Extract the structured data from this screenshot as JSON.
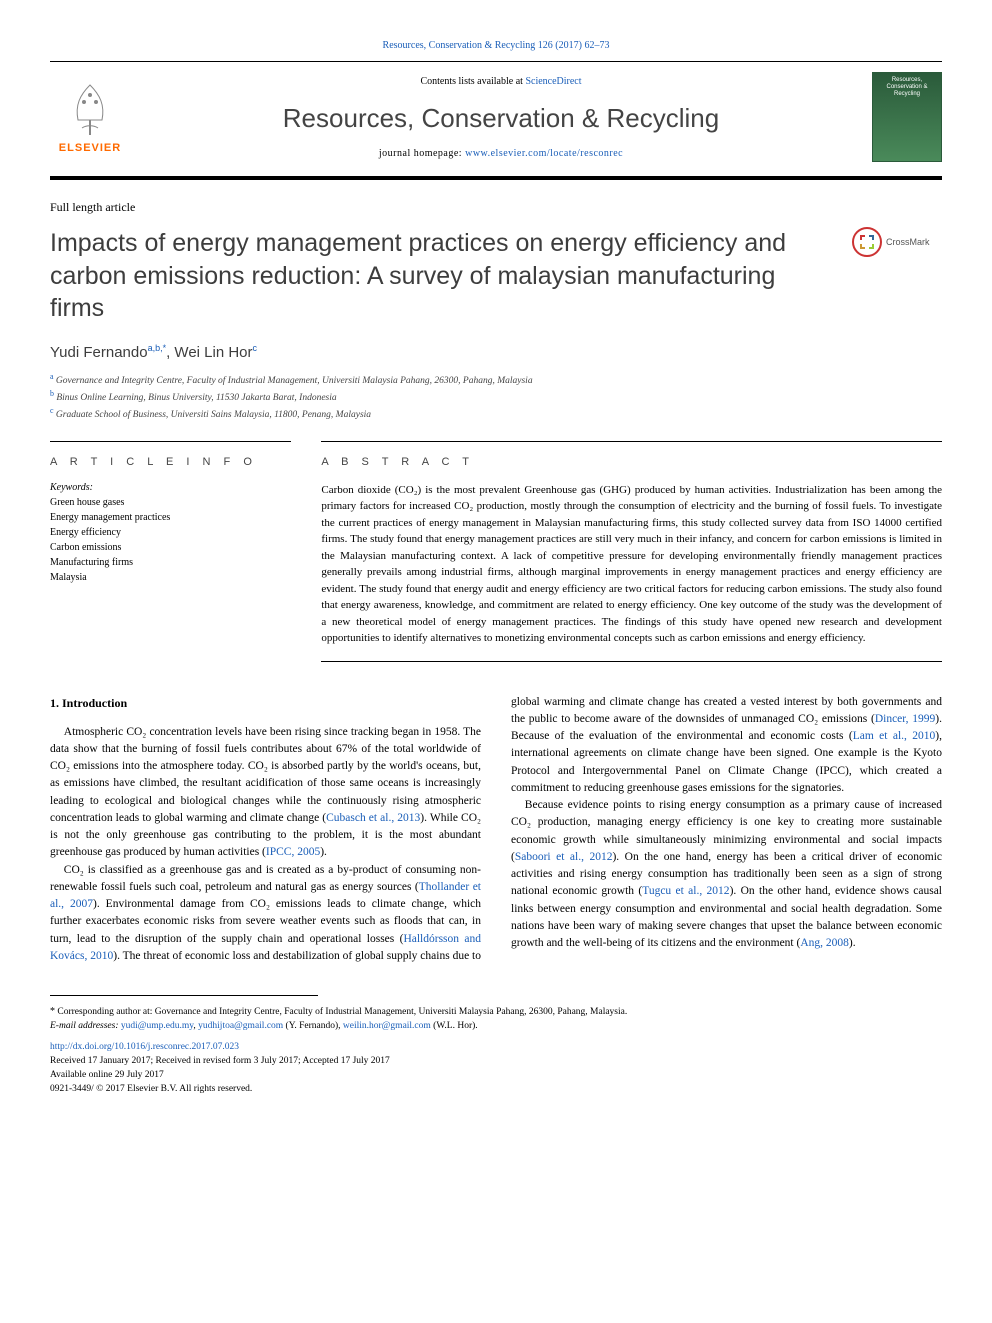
{
  "header": {
    "top_link_text": "Resources, Conservation & Recycling 126 (2017) 62–73",
    "contents_prefix": "Contents lists available at ",
    "contents_link": "ScienceDirect",
    "journal_name": "Resources, Conservation & Recycling",
    "homepage_prefix": "journal homepage: ",
    "homepage_link": "www.elsevier.com/locate/resconrec",
    "publisher": "ELSEVIER",
    "cover_text": "Resources, Conservation & Recycling"
  },
  "article": {
    "type": "Full length article",
    "title": "Impacts of energy management practices on energy efficiency and carbon emissions reduction: A survey of malaysian manufacturing firms",
    "crossmark": "CrossMark",
    "authors_html": "Yudi Fernando<sup>a,b,*</sup>, Wei Lin Hor<sup>c</sup>",
    "affiliations": [
      {
        "mark": "a",
        "text": "Governance and Integrity Centre, Faculty of Industrial Management, Universiti Malaysia Pahang, 26300, Pahang, Malaysia"
      },
      {
        "mark": "b",
        "text": "Binus Online Learning, Binus University, 11530 Jakarta Barat, Indonesia"
      },
      {
        "mark": "c",
        "text": "Graduate School of Business, Universiti Sains Malaysia, 11800, Penang, Malaysia"
      }
    ]
  },
  "info": {
    "head": "A R T I C L E  I N F O",
    "keywords_label": "Keywords:",
    "keywords": [
      "Green house gases",
      "Energy management practices",
      "Energy efficiency",
      "Carbon emissions",
      "Manufacturing firms",
      "Malaysia"
    ]
  },
  "abstract": {
    "head": "A B S T R A C T",
    "text": "Carbon dioxide (CO₂) is the most prevalent Greenhouse gas (GHG) produced by human activities. Industrialization has been among the primary factors for increased CO₂ production, mostly through the consumption of electricity and the burning of fossil fuels. To investigate the current practices of energy management in Malaysian manufacturing firms, this study collected survey data from ISO 14000 certified firms. The study found that energy management practices are still very much in their infancy, and concern for carbon emissions is limited in the Malaysian manufacturing context. A lack of competitive pressure for developing environmentally friendly management practices generally prevails among industrial firms, although marginal improvements in energy management practices and energy efficiency are evident. The study found that energy audit and energy efficiency are two critical factors for reducing carbon emissions. The study also found that energy awareness, knowledge, and commitment are related to energy efficiency. One key outcome of the study was the development of a new theoretical model of energy management practices. The findings of this study have opened new research and development opportunities to identify alternatives to monetizing environmental concepts such as carbon emissions and energy efficiency."
  },
  "body": {
    "h1": "1. Introduction",
    "p1": "Atmospheric CO₂ concentration levels have been rising since tracking began in 1958. The data show that the burning of fossil fuels contributes about 67% of the total worldwide of CO₂ emissions into the atmosphere today. CO₂ is absorbed partly by the world's oceans, but, as emissions have climbed, the resultant acidification of those same oceans is increasingly leading to ecological and biological changes while the continuously rising atmospheric concentration leads to global warming and climate change (",
    "p1_cite1": "Cubasch et al., 2013",
    "p1_mid": "). While CO₂ is not the only greenhouse gas contributing to the problem, it is the most abundant greenhouse gas produced by human activities (",
    "p1_cite2": "IPCC, 2005",
    "p1_end": ").",
    "p2a": "CO₂ is classified as a greenhouse gas and is created as a by-product of consuming non-renewable fossil fuels such coal, petroleum and natural gas as energy sources (",
    "p2_cite1": "Thollander et al., 2007",
    "p2b": "). Environmental damage from CO₂ emissions leads to climate change, which further exacerbates economic risks from severe weather events such as floods that can, in turn, lead to the disruption of the supply chain and operational losses (",
    "p2_cite2": "Halldórsson and Kovács, 2010",
    "p2c": "). The threat of economic loss and destabilization of global supply chains due to global warming and climate change has created a vested interest by both governments and the public to become aware of the downsides of unmanaged CO₂ emissions (",
    "p2_cite3": "Dincer, 1999",
    "p2d": "). Because of the evaluation of the environmental and economic costs (",
    "p2_cite4": "Lam et al., 2010",
    "p2e": "), international agreements on climate change have been signed. One example is the Kyoto Protocol and Intergovernmental Panel on Climate Change (IPCC), which created a commitment to reducing greenhouse gases emissions for the signatories.",
    "p3a": "Because evidence points to rising energy consumption as a primary cause of increased CO₂ production, managing energy efficiency is one key to creating more sustainable economic growth while simultaneously minimizing environmental and social impacts (",
    "p3_cite1": "Saboori et al., 2012",
    "p3b": "). On the one hand, energy has been a critical driver of economic activities and rising energy consumption has traditionally been seen as a sign of strong national economic growth (",
    "p3_cite2": "Tugcu et al., 2012",
    "p3c": "). On the other hand, evidence shows causal links between energy consumption and environmental and social health degradation. Some nations have been wary of making severe changes that upset the balance between economic growth and the well-being of its citizens and the environment (",
    "p3_cite3": "Ang, 2008",
    "p3d": ")."
  },
  "footnotes": {
    "corr_mark": "*",
    "corr_text": "Corresponding author at: Governance and Integrity Centre, Faculty of Industrial Management, Universiti Malaysia Pahang, 26300, Pahang, Malaysia.",
    "email_label": "E-mail addresses: ",
    "email1": "yudi@ump.edu.my",
    "email_sep1": ", ",
    "email2": "yudhijtoa@gmail.com",
    "email_aft1": " (Y. Fernando), ",
    "email3": "weilin.hor@gmail.com",
    "email_aft2": " (W.L. Hor)."
  },
  "doi": {
    "link": "http://dx.doi.org/10.1016/j.resconrec.2017.07.023",
    "history": "Received 17 January 2017; Received in revised form 3 July 2017; Accepted 17 July 2017",
    "available": "Available online 29 July 2017",
    "copyright": "0921-3449/ © 2017 Elsevier B.V. All rights reserved."
  },
  "colors": {
    "link": "#1a5eb8",
    "orange": "#ff6a00",
    "heading_gray": "#3d3d3d"
  }
}
